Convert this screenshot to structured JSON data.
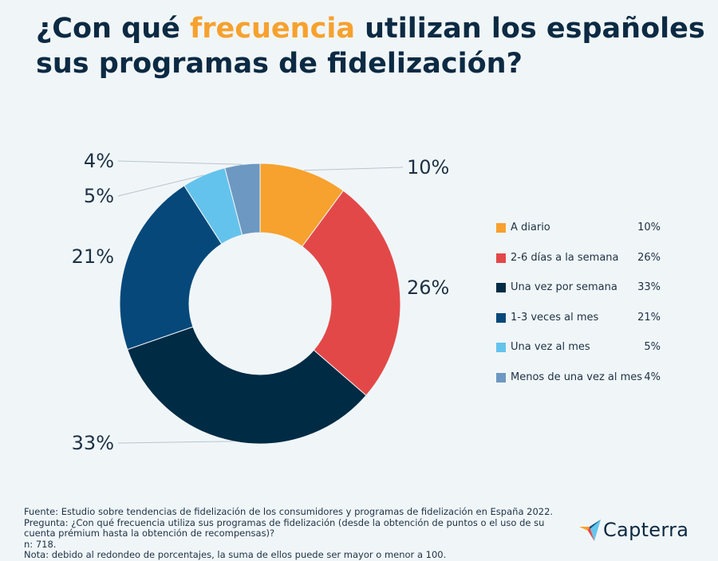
{
  "title": {
    "part1": "¿Con qué ",
    "highlight": "frecuencia",
    "part2": " utilizan los españoles sus programas de fidelización?"
  },
  "chart_data": {
    "type": "donut",
    "title": "¿Con qué frecuencia utilizan los españoles sus programas de fidelización?",
    "categories": [
      "A diario",
      "2-6 días a la semana",
      "Una vez por semana",
      "1-3 veces al mes",
      "Una vez al mes",
      "Menos de una vez al mes"
    ],
    "values": [
      10,
      26,
      33,
      21,
      5,
      4
    ],
    "value_labels": [
      "10%",
      "26%",
      "33%",
      "21%",
      "5%",
      "4%"
    ],
    "colors": [
      "#f7a12e",
      "#e34848",
      "#002b45",
      "#06487a",
      "#64c3ec",
      "#6d98c1"
    ],
    "legend_position": "right"
  },
  "footer": {
    "source": "Fuente: Estudio sobre tendencias de fidelización de los consumidores y programas de fidelización en España 2022.",
    "question": "Pregunta: ¿Con qué frecuencia utiliza sus programas de fidelización (desde la obtención de puntos o el uso de su cuenta prémium hasta la obtención de recompensas)?",
    "n": "n: 718.",
    "note": "Nota: debido al redondeo de porcentajes, la suma de ellos puede ser mayor o menor a 100."
  },
  "brand": {
    "name": "Capterra"
  }
}
